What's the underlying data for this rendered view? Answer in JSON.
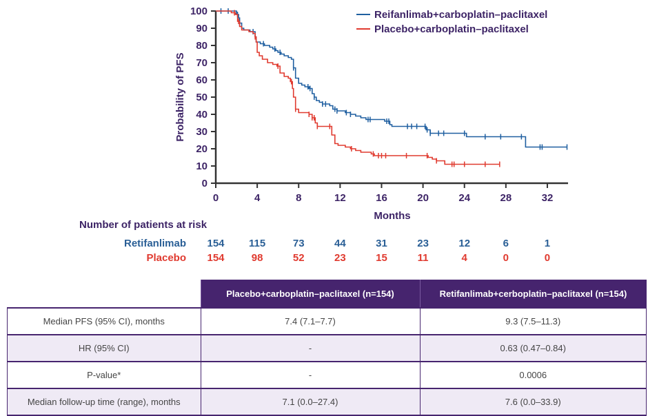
{
  "chart_data": {
    "type": "line",
    "subtype": "kaplan-meier",
    "title": "",
    "xlabel": "Months",
    "ylabel": "Probability of PFS",
    "xlim": [
      0,
      34
    ],
    "ylim": [
      0,
      100
    ],
    "x_ticks": [
      0,
      4,
      8,
      12,
      16,
      20,
      24,
      28,
      32
    ],
    "y_ticks": [
      0,
      10,
      20,
      30,
      40,
      50,
      60,
      70,
      80,
      90,
      100
    ],
    "grid": false,
    "legend_position": "top-right",
    "series": [
      {
        "name": "Reifanlimab+carboplatin–paclitaxel",
        "color": "#1f5fa0",
        "steps": [
          [
            0,
            100
          ],
          [
            1.9,
            100
          ],
          [
            2.0,
            98
          ],
          [
            2.2,
            96
          ],
          [
            2.3,
            93
          ],
          [
            2.5,
            90
          ],
          [
            2.7,
            89
          ],
          [
            3.0,
            89
          ],
          [
            3.3,
            88
          ],
          [
            3.7,
            88
          ],
          [
            3.8,
            85
          ],
          [
            3.9,
            82
          ],
          [
            4.3,
            81
          ],
          [
            4.7,
            80
          ],
          [
            5.2,
            79
          ],
          [
            5.5,
            78
          ],
          [
            5.8,
            77
          ],
          [
            6.0,
            76
          ],
          [
            6.3,
            75
          ],
          [
            6.6,
            74
          ],
          [
            7.0,
            73
          ],
          [
            7.3,
            72
          ],
          [
            7.5,
            67
          ],
          [
            7.7,
            61
          ],
          [
            8.0,
            58
          ],
          [
            8.3,
            57
          ],
          [
            8.6,
            56
          ],
          [
            9.0,
            55
          ],
          [
            9.3,
            52
          ],
          [
            9.5,
            50
          ],
          [
            9.7,
            48
          ],
          [
            10.0,
            47
          ],
          [
            10.3,
            46
          ],
          [
            11.0,
            45
          ],
          [
            11.3,
            43
          ],
          [
            11.7,
            42
          ],
          [
            12.5,
            41
          ],
          [
            13.0,
            40
          ],
          [
            13.5,
            39
          ],
          [
            14.0,
            38
          ],
          [
            14.5,
            37
          ],
          [
            15.5,
            37
          ],
          [
            16.3,
            36
          ],
          [
            16.8,
            34
          ],
          [
            17.0,
            33
          ],
          [
            20.0,
            33
          ],
          [
            20.3,
            31
          ],
          [
            20.7,
            29
          ],
          [
            24.0,
            29
          ],
          [
            24.2,
            27
          ],
          [
            29.8,
            27
          ],
          [
            29.9,
            21
          ],
          [
            33.9,
            21
          ]
        ],
        "censor": [
          0.5,
          1.2,
          2.1,
          2.3,
          3.6,
          4.6,
          5.7,
          6.2,
          7.5,
          8.9,
          9.1,
          9.5,
          10.3,
          10.6,
          11.5,
          11.7,
          12.6,
          13.0,
          14.7,
          14.9,
          16.5,
          16.7,
          18.5,
          18.9,
          19.4,
          20.2,
          20.4,
          20.7,
          21.5,
          22.0,
          24.0,
          26.0,
          27.5,
          29.5,
          31.3,
          31.5,
          33.9
        ]
      },
      {
        "name": "Placebo+carboplatin–paclitaxel",
        "color": "#e03a2f",
        "steps": [
          [
            0,
            100
          ],
          [
            1.5,
            99
          ],
          [
            1.9,
            98
          ],
          [
            2.1,
            94
          ],
          [
            2.3,
            91
          ],
          [
            2.5,
            89
          ],
          [
            3.2,
            88
          ],
          [
            3.6,
            87
          ],
          [
            3.8,
            85
          ],
          [
            3.9,
            82
          ],
          [
            4.0,
            76
          ],
          [
            4.2,
            74
          ],
          [
            4.5,
            72
          ],
          [
            5.0,
            70
          ],
          [
            5.5,
            69
          ],
          [
            5.9,
            68
          ],
          [
            6.2,
            64
          ],
          [
            6.6,
            62
          ],
          [
            7.0,
            61
          ],
          [
            7.2,
            59
          ],
          [
            7.4,
            55
          ],
          [
            7.5,
            50
          ],
          [
            7.7,
            43
          ],
          [
            8.0,
            41
          ],
          [
            9.0,
            40
          ],
          [
            9.3,
            38
          ],
          [
            9.6,
            35
          ],
          [
            9.8,
            33
          ],
          [
            11.0,
            33
          ],
          [
            11.2,
            28
          ],
          [
            11.5,
            23
          ],
          [
            11.8,
            22
          ],
          [
            12.5,
            21
          ],
          [
            13.0,
            20
          ],
          [
            13.5,
            19
          ],
          [
            14.0,
            18
          ],
          [
            15.0,
            17
          ],
          [
            15.3,
            16
          ],
          [
            20.5,
            15
          ],
          [
            20.9,
            14
          ],
          [
            21.3,
            13
          ],
          [
            22.1,
            11
          ],
          [
            27.4,
            11
          ]
        ],
        "censor": [
          1.8,
          2.2,
          3.8,
          6.0,
          7.3,
          7.7,
          9.0,
          9.3,
          9.5,
          9.8,
          11.0,
          13.1,
          15.2,
          15.7,
          16.0,
          16.4,
          18.4,
          20.4,
          21.3,
          22.8,
          23.0,
          24.0,
          26.0,
          27.4
        ]
      }
    ],
    "at_risk": {
      "title": "Number of patients at risk",
      "times": [
        0,
        4,
        8,
        12,
        16,
        20,
        24,
        28,
        32
      ],
      "rows": [
        {
          "label": "Retifanlimab",
          "color": "#2a5f96",
          "values": [
            154,
            115,
            73,
            44,
            31,
            23,
            12,
            6,
            1
          ]
        },
        {
          "label": "Placebo",
          "color": "#e03a2f",
          "values": [
            154,
            98,
            52,
            23,
            15,
            11,
            4,
            0,
            0
          ]
        }
      ]
    }
  },
  "table": {
    "headers": [
      "",
      "Placebo+carboplatin–paclitaxel (n=154)",
      "Retifanlimab+cerboplatin–paclitaxel (n=154)"
    ],
    "rows": [
      [
        "Median PFS (95% CI), months",
        "7.4 (7.1–7.7)",
        "9.3 (7.5–11.3)"
      ],
      [
        "HR (95% CI)",
        "-",
        "0.63 (0.47–0.84)"
      ],
      [
        "P-value*",
        "-",
        "0.0006"
      ],
      [
        "Median follow-up time (range), months",
        "7.1 (0.0–27.4)",
        "7.6 (0.0–33.9)"
      ]
    ]
  },
  "colors": {
    "text_purple": "#3d2466",
    "header_purple": "#46246e",
    "row_alt": "#efeaf5"
  }
}
